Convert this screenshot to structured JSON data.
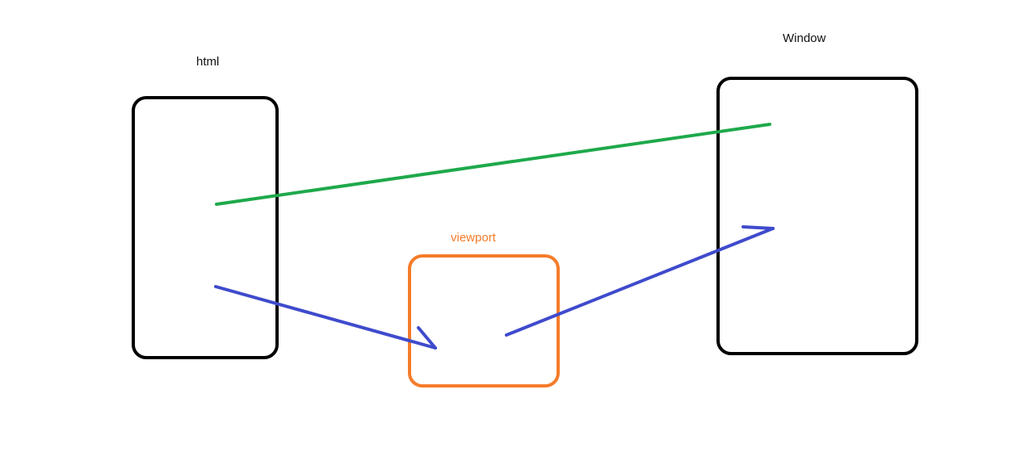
{
  "nodes": {
    "html": {
      "label": "html"
    },
    "viewport": {
      "label": "viewport"
    },
    "window": {
      "label": "Window"
    }
  },
  "colors": {
    "box_stroke": "#000000",
    "viewport_stroke": "#f57c2a",
    "viewport_label": "#f57c2a",
    "connector_green": "#1ea94b",
    "connector_blue": "#3f4bcc"
  },
  "edges": [
    {
      "from": "html",
      "to": "window",
      "color": "green",
      "arrow": false
    },
    {
      "from": "html",
      "to": "viewport",
      "color": "blue",
      "arrow": true
    },
    {
      "from": "viewport",
      "to": "window",
      "color": "blue",
      "arrow": true
    }
  ]
}
